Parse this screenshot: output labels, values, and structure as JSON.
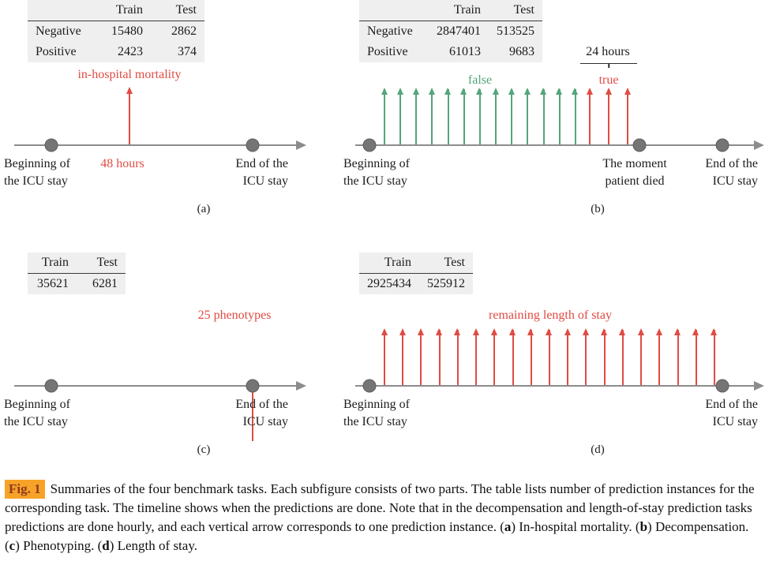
{
  "colors": {
    "red": "#e04b42",
    "green": "#55a57a",
    "gray": "#8c8c8c",
    "dot": "#757575",
    "table_bg": "#efefef",
    "fig_label_bg": "#f7a328",
    "fig_label_text": "#8f3a1e"
  },
  "panels": {
    "a": {
      "tag": "(a)",
      "table": {
        "headers": [
          "",
          "Train",
          "Test"
        ],
        "rows": [
          [
            "Negative",
            "15480",
            "2862"
          ],
          [
            "Positive",
            "2423",
            "374"
          ]
        ]
      },
      "annotation": "in-hospital mortality",
      "time_marker": "48 hours",
      "start_label": "Beginning of\nthe ICU stay",
      "end_label": "End of the\nICU stay"
    },
    "b": {
      "tag": "(b)",
      "table": {
        "headers": [
          "",
          "Train",
          "Test"
        ],
        "rows": [
          [
            "Negative",
            "2847401",
            "513525"
          ],
          [
            "Positive",
            "61013",
            "9683"
          ]
        ]
      },
      "window_label": "24 hours",
      "false_label": "false",
      "true_label": "true",
      "false_arrow_count": 13,
      "true_arrow_count": 3,
      "start_label": "Beginning of\nthe ICU stay",
      "death_label": "The moment\npatient died",
      "end_label": "End of the\nICU stay"
    },
    "c": {
      "tag": "(c)",
      "table": {
        "headers": [
          "Train",
          "Test"
        ],
        "rows": [
          [
            "35621",
            "6281"
          ]
        ]
      },
      "annotation": "25 phenotypes",
      "start_label": "Beginning of\nthe ICU stay",
      "end_label": "End of the\nICU stay"
    },
    "d": {
      "tag": "(d)",
      "table": {
        "headers": [
          "Train",
          "Test"
        ],
        "rows": [
          [
            "2925434",
            "525912"
          ]
        ]
      },
      "annotation": "remaining length of stay",
      "arrow_count": 19,
      "start_label": "Beginning of\nthe ICU stay",
      "end_label": "End of the\nICU stay"
    }
  },
  "caption": {
    "fig_label": "Fig. 1",
    "segments": [
      {
        "text": "Summaries of the four benchmark tasks. Each subfigure consists of two parts. The table lists number of prediction instances for the corresponding task. The timeline shows when the predictions are done. Note that in the decompensation and length-of-stay prediction tasks predictions are done hourly, and each vertical arrow corresponds to one prediction instance. (",
        "bold": false
      },
      {
        "text": "a",
        "bold": true
      },
      {
        "text": ") In-hospital mortality. (",
        "bold": false
      },
      {
        "text": "b",
        "bold": true
      },
      {
        "text": ") Decompensation. (",
        "bold": false
      },
      {
        "text": "c",
        "bold": true
      },
      {
        "text": ") Phenotyping. (",
        "bold": false
      },
      {
        "text": "d",
        "bold": true
      },
      {
        "text": ") Length of stay.",
        "bold": false
      }
    ]
  }
}
